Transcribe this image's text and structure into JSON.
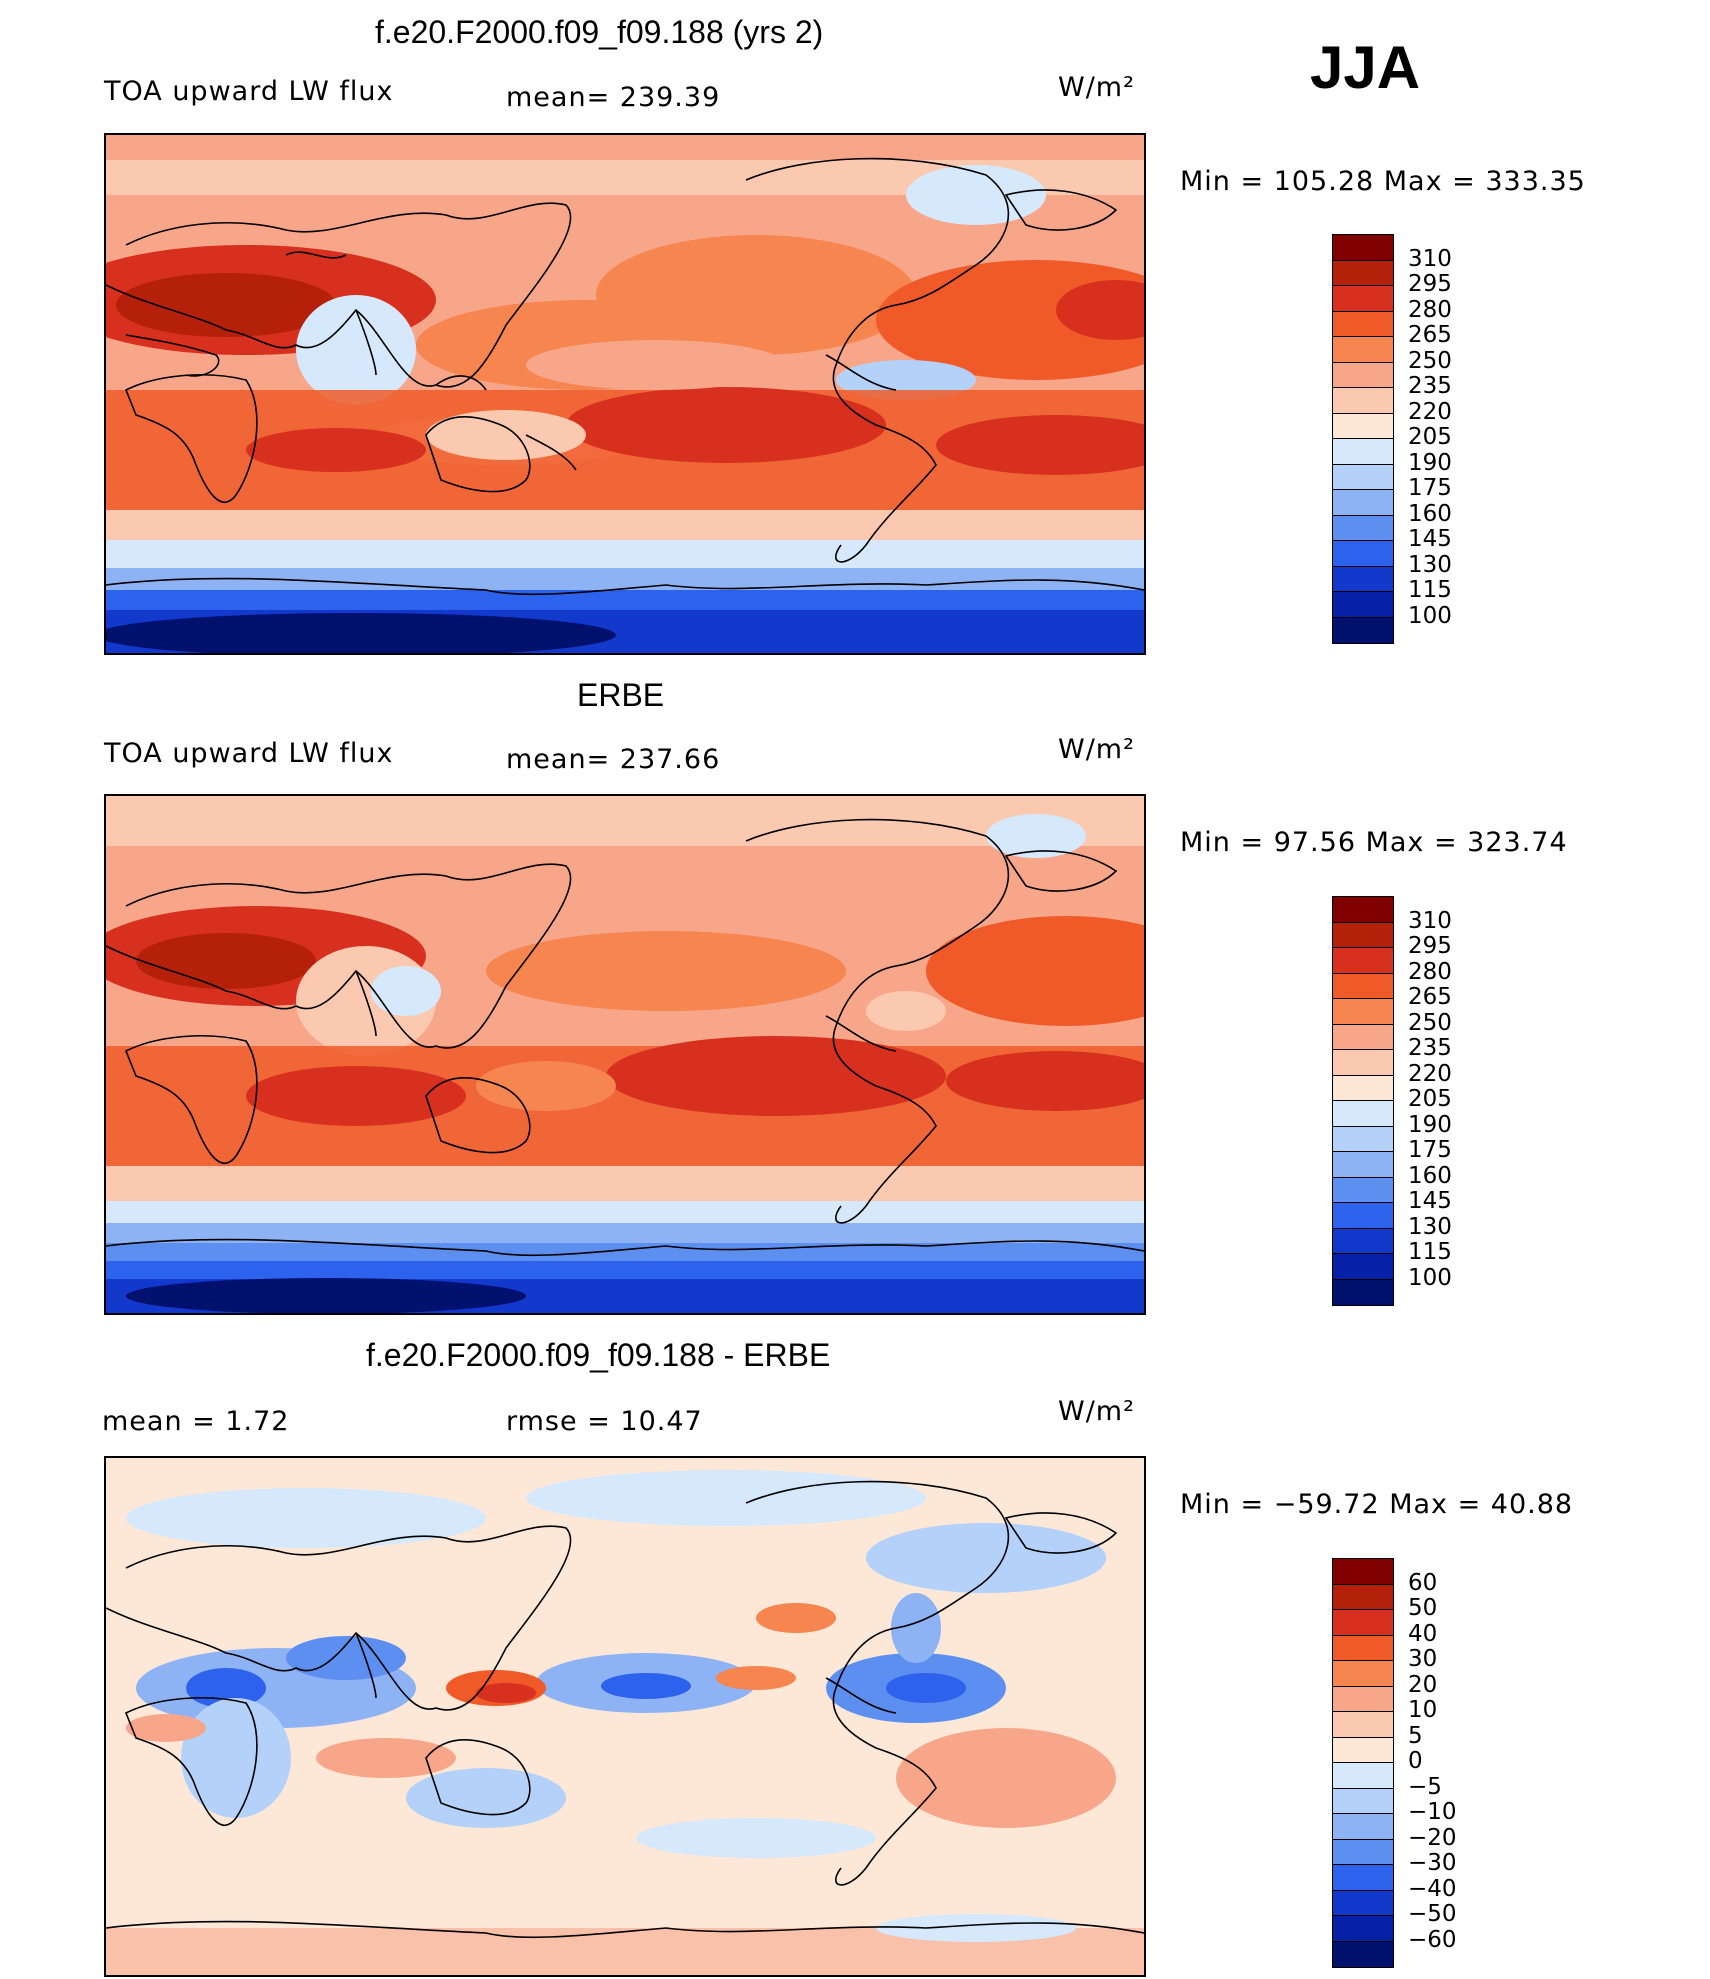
{
  "season": "JJA",
  "units_label": "W/m²",
  "panels": [
    {
      "title": "f.e20.F2000.f09_f09.188 (yrs 2)",
      "left_label": "TOA upward LW flux",
      "mid_label": "mean=  239.39",
      "units": "W/m²",
      "minmax": "Min  =  105.28  Max  =  333.35",
      "levels": [
        "310",
        "295",
        "280",
        "265",
        "250",
        "235",
        "220",
        "205",
        "190",
        "175",
        "160",
        "145",
        "130",
        "115",
        "100"
      ]
    },
    {
      "title": "ERBE",
      "left_label": "TOA upward LW flux",
      "mid_label": "mean=  237.66",
      "units": "W/m²",
      "minmax": "Min  =    97.56  Max  =  323.74",
      "levels": [
        "310",
        "295",
        "280",
        "265",
        "250",
        "235",
        "220",
        "205",
        "190",
        "175",
        "160",
        "145",
        "130",
        "115",
        "100"
      ]
    },
    {
      "title": "f.e20.F2000.f09_f09.188 - ERBE",
      "left_label": "mean  =      1.72",
      "mid_label": "rmse  =     10.47",
      "units": "W/m²",
      "minmax": "Min  =  −59.72  Max  =    40.88",
      "levels": [
        "60",
        "50",
        "40",
        "30",
        "20",
        "10",
        "5",
        "0",
        "−5",
        "−10",
        "−20",
        "−30",
        "−40",
        "−50",
        "−60"
      ]
    }
  ],
  "colors": {
    "abs_scale": [
      "#800000",
      "#b5200a",
      "#d7301f",
      "#f05a28",
      "#f6854f",
      "#f7a68a",
      "#fbc9b0",
      "#fde8d8",
      "#d6e8fb",
      "#b4d1fa",
      "#8db3f5",
      "#5c8ff0",
      "#2c62ec",
      "#1238cc",
      "#0620a8",
      "#02106e"
    ],
    "diff_scale": [
      "#800000",
      "#b5200a",
      "#d7301f",
      "#f05a28",
      "#f6854f",
      "#f7a68a",
      "#fbc9b0",
      "#fde8d8",
      "#d6e8fb",
      "#b4d1fa",
      "#8db3f5",
      "#5c8ff0",
      "#2c62ec",
      "#1238cc",
      "#0620a8",
      "#02106e"
    ]
  }
}
